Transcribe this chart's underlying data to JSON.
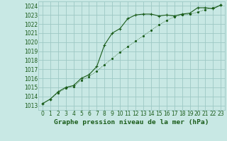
{
  "bg_color": "#c8e8e4",
  "grid_color": "#9dc8c4",
  "line_color": "#1a5c1a",
  "title": "Graphe pression niveau de la mer (hPa)",
  "xlim": [
    -0.5,
    23.5
  ],
  "ylim": [
    1012.5,
    1024.5
  ],
  "yticks": [
    1013,
    1014,
    1015,
    1016,
    1017,
    1018,
    1019,
    1020,
    1021,
    1022,
    1023,
    1024
  ],
  "xticks": [
    0,
    1,
    2,
    3,
    4,
    5,
    6,
    7,
    8,
    9,
    10,
    11,
    12,
    13,
    14,
    15,
    16,
    17,
    18,
    19,
    20,
    21,
    22,
    23
  ],
  "line1_x": [
    0,
    1,
    2,
    3,
    4,
    5,
    6,
    7,
    8,
    9,
    10,
    11,
    12,
    13,
    14,
    15,
    16,
    17,
    18,
    19,
    20,
    21,
    22,
    23
  ],
  "line1_y": [
    1013.2,
    1013.7,
    1014.5,
    1015.0,
    1015.2,
    1016.0,
    1016.4,
    1017.3,
    1019.7,
    1021.0,
    1021.5,
    1022.6,
    1023.0,
    1023.1,
    1023.1,
    1022.9,
    1023.0,
    1022.9,
    1023.1,
    1023.2,
    1023.8,
    1023.8,
    1023.7,
    1024.1
  ],
  "line2_x": [
    0,
    1,
    2,
    3,
    4,
    5,
    6,
    7,
    8,
    9,
    10,
    11,
    12,
    13,
    14,
    15,
    16,
    17,
    18,
    19,
    20,
    21,
    22,
    23
  ],
  "line2_y": [
    1013.2,
    1013.7,
    1014.4,
    1014.9,
    1015.1,
    1015.8,
    1016.2,
    1016.8,
    1017.5,
    1018.2,
    1018.9,
    1019.5,
    1020.1,
    1020.7,
    1021.3,
    1021.9,
    1022.4,
    1022.8,
    1023.0,
    1023.1,
    1023.3,
    1023.6,
    1023.8,
    1024.1
  ],
  "tick_fontsize": 5.5,
  "title_fontsize": 6.8,
  "title_fontweight": "bold"
}
